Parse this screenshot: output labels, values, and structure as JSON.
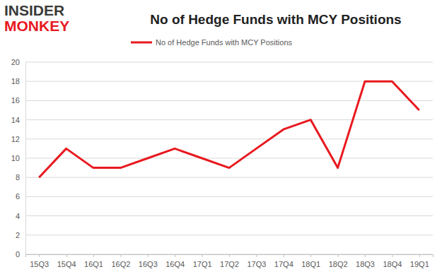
{
  "chart_data": {
    "type": "line",
    "title": "No of Hedge Funds with MCY Positions",
    "annotations": [
      "INSIDER",
      "MONKEY"
    ],
    "categories": [
      "15Q3",
      "15Q4",
      "16Q1",
      "16Q2",
      "16Q3",
      "16Q4",
      "17Q1",
      "17Q2",
      "17Q3",
      "17Q4",
      "18Q1",
      "18Q2",
      "18Q3",
      "18Q4",
      "19Q1"
    ],
    "series": [
      {
        "name": "No of Hedge Funds with MCY Positions",
        "color": "#e8191f",
        "values": [
          8,
          11,
          9,
          9,
          10,
          11,
          10,
          9,
          11,
          13,
          14,
          9,
          18,
          18,
          15
        ]
      }
    ],
    "ylim": [
      0,
      20
    ],
    "yticks": [
      0,
      2,
      4,
      6,
      8,
      10,
      12,
      14,
      16,
      18,
      20
    ],
    "grid": true,
    "legend": "top"
  }
}
